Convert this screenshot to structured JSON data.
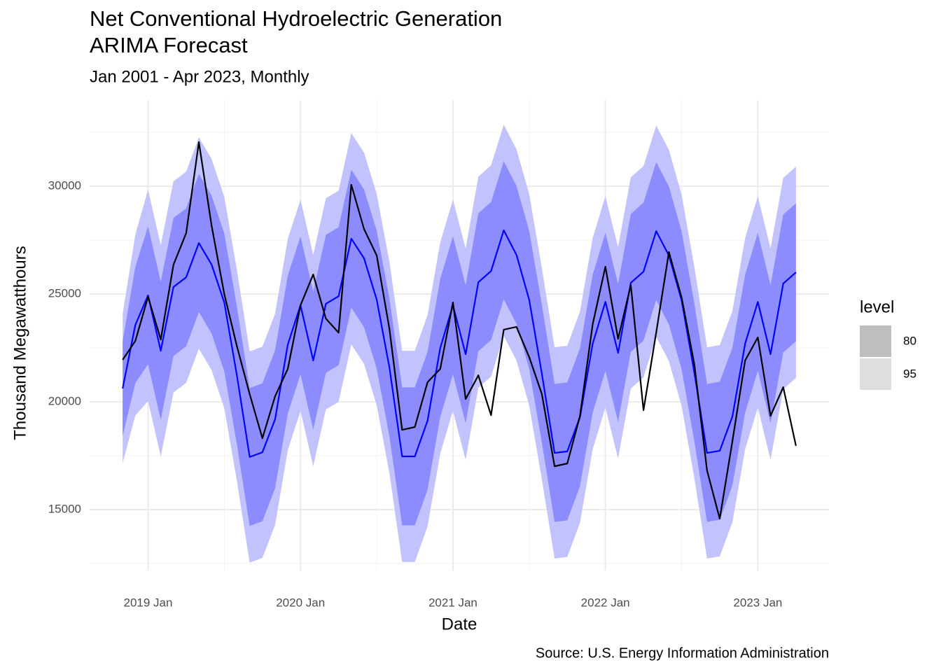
{
  "chart_data": {
    "type": "line",
    "title": [
      "Net Conventional Hydroelectric Generation",
      "ARIMA Forecast"
    ],
    "subtitle": "Jan 2001 - Apr 2023, Monthly",
    "caption": "Source: U.S. Energy Information Administration",
    "x_label": "Date",
    "y_label": "Thousand Megawatthours",
    "x": [
      "2018 Nov",
      "2018 Dec",
      "2019 Jan",
      "2019 Feb",
      "2019 Mar",
      "2019 Apr",
      "2019 May",
      "2019 Jun",
      "2019 Jul",
      "2019 Aug",
      "2019 Sep",
      "2019 Oct",
      "2019 Nov",
      "2019 Dec",
      "2020 Jan",
      "2020 Feb",
      "2020 Mar",
      "2020 Apr",
      "2020 May",
      "2020 Jun",
      "2020 Jul",
      "2020 Aug",
      "2020 Sep",
      "2020 Oct",
      "2020 Nov",
      "2020 Dec",
      "2021 Jan",
      "2021 Feb",
      "2021 Mar",
      "2021 Apr",
      "2021 May",
      "2021 Jun",
      "2021 Jul",
      "2021 Aug",
      "2021 Sep",
      "2021 Oct",
      "2021 Nov",
      "2021 Dec",
      "2022 Jan",
      "2022 Feb",
      "2022 Mar",
      "2022 Apr",
      "2022 May",
      "2022 Jun",
      "2022 Jul",
      "2022 Aug",
      "2022 Sep",
      "2022 Oct",
      "2022 Nov",
      "2022 Dec",
      "2023 Jan",
      "2023 Feb",
      "2023 Mar",
      "2023 Apr"
    ],
    "xticks": [
      "2019 Jan",
      "2020 Jan",
      "2021 Jan",
      "2022 Jan",
      "2023 Jan"
    ],
    "ylim": [
      12175,
      34000
    ],
    "yticks": [
      15000,
      20000,
      25000,
      30000
    ],
    "grid": true,
    "legend_title": "level",
    "intervals": [
      {
        "level": "95",
        "color": "#c2c2ff",
        "legend_color": "#dedede",
        "lower": [
          17170,
          19370,
          20040,
          17470,
          20430,
          20880,
          22470,
          21470,
          19710,
          16300,
          12540,
          12760,
          14290,
          17760,
          19580,
          17020,
          19650,
          20000,
          22670,
          21760,
          19840,
          16690,
          12570,
          12570,
          14220,
          17600,
          19580,
          17310,
          20650,
          21170,
          23060,
          21920,
          19840,
          16400,
          12730,
          12800,
          14390,
          17800,
          19740,
          17370,
          20620,
          21140,
          23020,
          21890,
          19810,
          16470,
          12730,
          12830,
          14420,
          17800,
          19740,
          17310,
          20590,
          21110
        ],
        "upper": [
          24070,
          27770,
          29840,
          27270,
          30230,
          30680,
          32270,
          31270,
          29510,
          26100,
          22340,
          22560,
          24090,
          27560,
          29380,
          26820,
          29450,
          29800,
          32470,
          31560,
          29640,
          26490,
          22370,
          22370,
          24020,
          27400,
          29380,
          27110,
          30450,
          30970,
          32860,
          31720,
          29640,
          26200,
          22530,
          22600,
          24190,
          27600,
          29540,
          27170,
          30420,
          30940,
          32820,
          31690,
          29610,
          26270,
          22530,
          22630,
          24220,
          27600,
          29540,
          27110,
          30390,
          30910
        ]
      },
      {
        "level": "80",
        "color": "#8c8cff",
        "legend_color": "#bebebe",
        "lower": [
          18420,
          20870,
          21740,
          19170,
          22130,
          22580,
          24170,
          23170,
          21410,
          18000,
          14240,
          14460,
          15990,
          19460,
          21280,
          18720,
          21350,
          21700,
          24370,
          23460,
          21540,
          18390,
          14270,
          14270,
          15920,
          19300,
          21280,
          19010,
          22350,
          22870,
          24760,
          23620,
          21540,
          18100,
          14430,
          14500,
          16090,
          19500,
          21440,
          19070,
          22320,
          22840,
          24720,
          23590,
          21510,
          18170,
          14430,
          14530,
          16120,
          19500,
          21440,
          19010,
          22290,
          22810
        ],
        "upper": [
          22820,
          26270,
          28140,
          25570,
          28530,
          28980,
          30570,
          29570,
          27810,
          24400,
          20640,
          20860,
          22390,
          25860,
          27680,
          25120,
          27750,
          28100,
          30770,
          29860,
          27940,
          24790,
          20670,
          20670,
          22320,
          25700,
          27680,
          25410,
          28750,
          29270,
          31160,
          30020,
          27940,
          24500,
          20830,
          20900,
          22490,
          25900,
          27840,
          25470,
          28720,
          29240,
          31120,
          29990,
          27910,
          24570,
          20830,
          20930,
          22520,
          25900,
          27840,
          25410,
          28690,
          29210
        ]
      }
    ],
    "series": [
      {
        "color": "#0000ff",
        "values": [
          20620,
          23570,
          24940,
          22370,
          25330,
          25780,
          27370,
          26370,
          24610,
          21200,
          17440,
          17660,
          19190,
          22660,
          24480,
          21920,
          24550,
          24900,
          27570,
          26660,
          24740,
          21590,
          17470,
          17470,
          19120,
          22500,
          24480,
          22210,
          25550,
          26070,
          27960,
          26820,
          24740,
          21300,
          17630,
          17700,
          19290,
          22700,
          24640,
          22270,
          25520,
          26040,
          27920,
          26790,
          24710,
          21370,
          17630,
          17730,
          19320,
          22700,
          24640,
          22210,
          25490,
          26010
        ]
      },
      {
        "color": "#000000",
        "values": [
          21950,
          22830,
          24870,
          22890,
          26360,
          27830,
          32050,
          28180,
          25000,
          22570,
          20360,
          18310,
          20260,
          21530,
          24480,
          25910,
          23860,
          23210,
          30070,
          28020,
          26790,
          23380,
          18700,
          18830,
          20910,
          21530,
          24610,
          20130,
          21230,
          19380,
          23350,
          23480,
          22080,
          20360,
          17010,
          17140,
          19350,
          23600,
          26270,
          22920,
          25420,
          19610,
          23210,
          26950,
          24840,
          21750,
          16820,
          14580,
          18180,
          21920,
          22990,
          19350,
          20680,
          17960
        ]
      }
    ]
  }
}
